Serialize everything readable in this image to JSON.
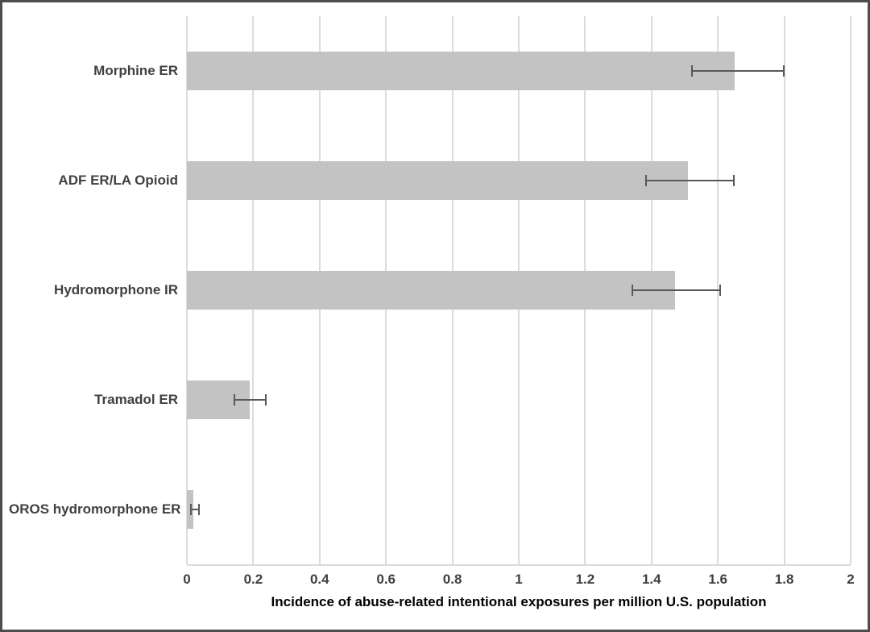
{
  "figure": {
    "background": "#ffffff",
    "border_color": "#4d4d4d"
  },
  "chart_data": {
    "type": "bar",
    "orientation": "horizontal",
    "title": "",
    "categories": [
      "Morphine ER",
      "ADF ER/LA Opioid",
      "Hydromorphone IR",
      "Tramadol ER",
      "OROS hydromorphone ER"
    ],
    "series": [
      {
        "name": "Incidence of abuse-related intentional exposures",
        "values": [
          1.65,
          1.51,
          1.47,
          0.19,
          0.02
        ],
        "error_low": [
          1.52,
          1.38,
          1.34,
          0.14,
          0.01
        ],
        "error_high": [
          1.8,
          1.65,
          1.61,
          0.24,
          0.04
        ]
      }
    ],
    "xlabel": "Incidence of abuse-related intentional exposures per million U.S. population",
    "ylabel": "",
    "xlim": [
      0,
      2
    ],
    "xticks": [
      0,
      0.2,
      0.4,
      0.6,
      0.8,
      1,
      1.2,
      1.4,
      1.6,
      1.8,
      2
    ],
    "xtick_labels": [
      "0",
      "0.2",
      "0.4",
      "0.6",
      "0.8",
      "1",
      "1.2",
      "1.4",
      "1.6",
      "1.8",
      "2"
    ],
    "grid": true,
    "legend": false,
    "bar_color": "#c3c3c3",
    "error_bar_color": "#595959",
    "gridline_color": "#dcdcdc",
    "text_color": "#404040"
  }
}
